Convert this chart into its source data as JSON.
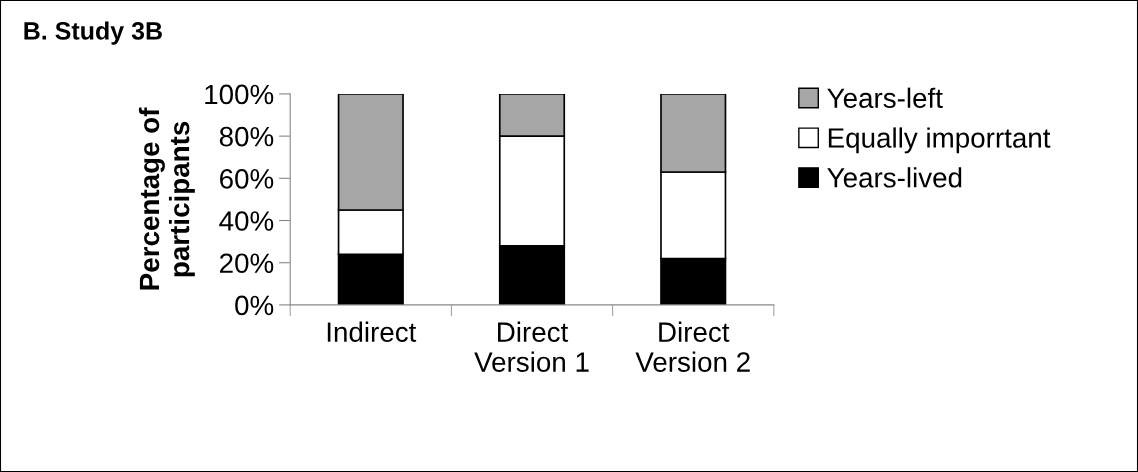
{
  "chart_data": {
    "type": "bar",
    "title": "B. Study 3B",
    "ylabel": "Percentage of\nparticipants",
    "stacked": true,
    "legend": "right",
    "categories": [
      "Indirect",
      "Direct\nVersion 1",
      "Direct\nVersion 2"
    ],
    "series": [
      {
        "name": "Years-lived",
        "color": "#000000",
        "values": [
          24,
          28,
          22
        ]
      },
      {
        "name": "Equally imporrtant",
        "color": "#ffffff",
        "values": [
          21,
          52,
          41
        ]
      },
      {
        "name": "Years-left",
        "color": "#a6a6a6",
        "values": [
          55,
          20,
          37
        ]
      }
    ],
    "ylim": [
      0,
      100
    ],
    "yticks": [
      {
        "value": 0,
        "label": "0%"
      },
      {
        "value": 20,
        "label": "20%"
      },
      {
        "value": 40,
        "label": "40%"
      },
      {
        "value": 60,
        "label": "60%"
      },
      {
        "value": 80,
        "label": "80%"
      },
      {
        "value": 100,
        "label": "100%"
      }
    ],
    "grid": false
  }
}
